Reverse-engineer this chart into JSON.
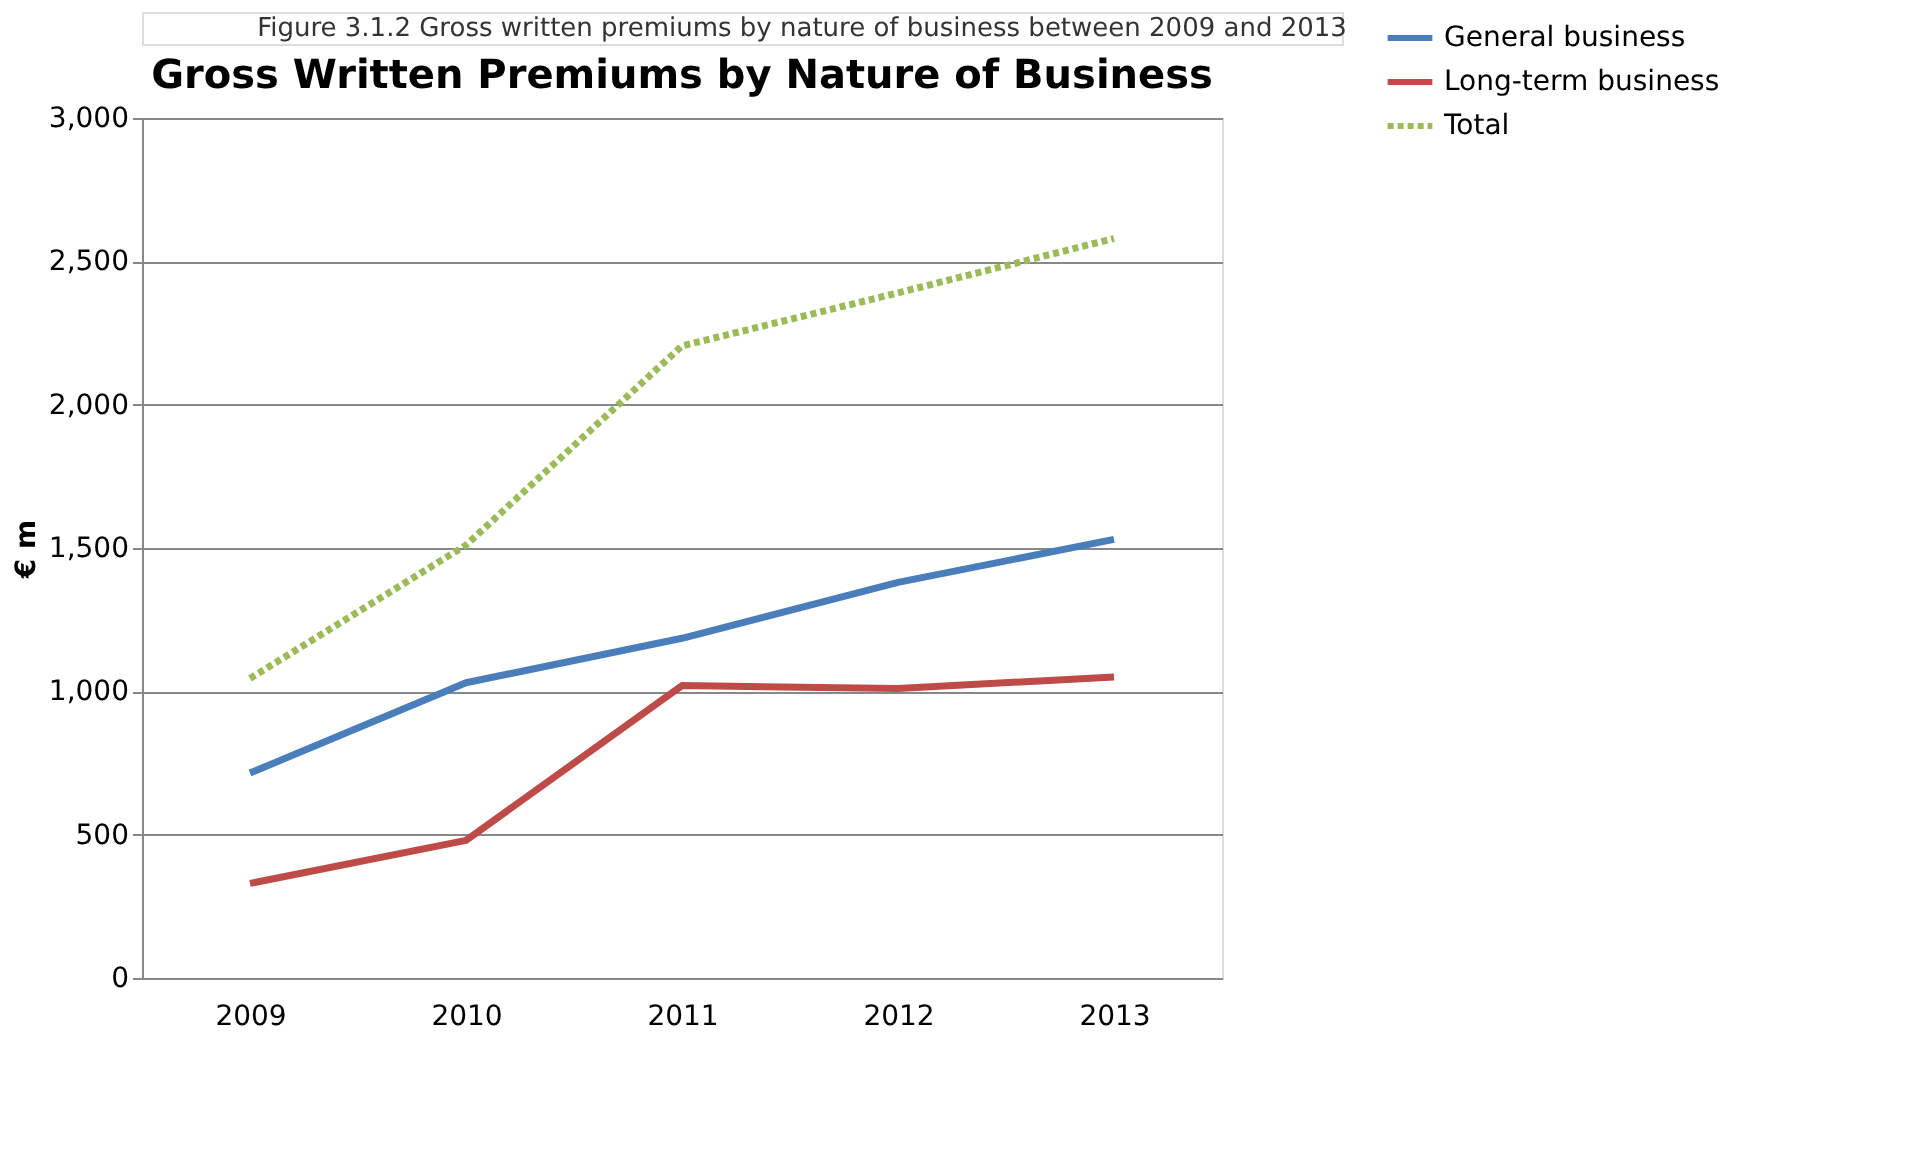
{
  "chart_data": {
    "type": "line",
    "title": "Gross Written Premiums by Nature of Business",
    "annotations": [
      "Figure 3.1.2 Gross written premiums by nature of business between 2009 and 2013"
    ],
    "ylabel": "€ m",
    "categories": [
      "2009",
      "2010",
      "2011",
      "2012",
      "2013"
    ],
    "series": [
      {
        "name": "General business",
        "color": "#4a7ebb",
        "line_style": "solid",
        "values": [
          715,
          1030,
          1185,
          1380,
          1530
        ]
      },
      {
        "name": "Long-term business",
        "color": "#be4b48",
        "line_style": "solid",
        "values": [
          330,
          480,
          1020,
          1010,
          1050
        ]
      },
      {
        "name": "Total",
        "color": "#9bbb59",
        "line_style": "dotted",
        "values": [
          1045,
          1510,
          2205,
          2390,
          2580
        ]
      }
    ],
    "ylim": [
      0,
      3000
    ],
    "yticks": [
      0,
      500,
      {
        "value": 1000,
        "label": "1,000"
      },
      {
        "value": 1500,
        "label": "1,500"
      },
      {
        "value": 2000,
        "label": "2,000"
      },
      {
        "value": 2500,
        "label": "2,500"
      },
      {
        "value": 3000,
        "label": "3,000"
      }
    ],
    "grid": "y",
    "legend": "right",
    "marker": "none"
  }
}
